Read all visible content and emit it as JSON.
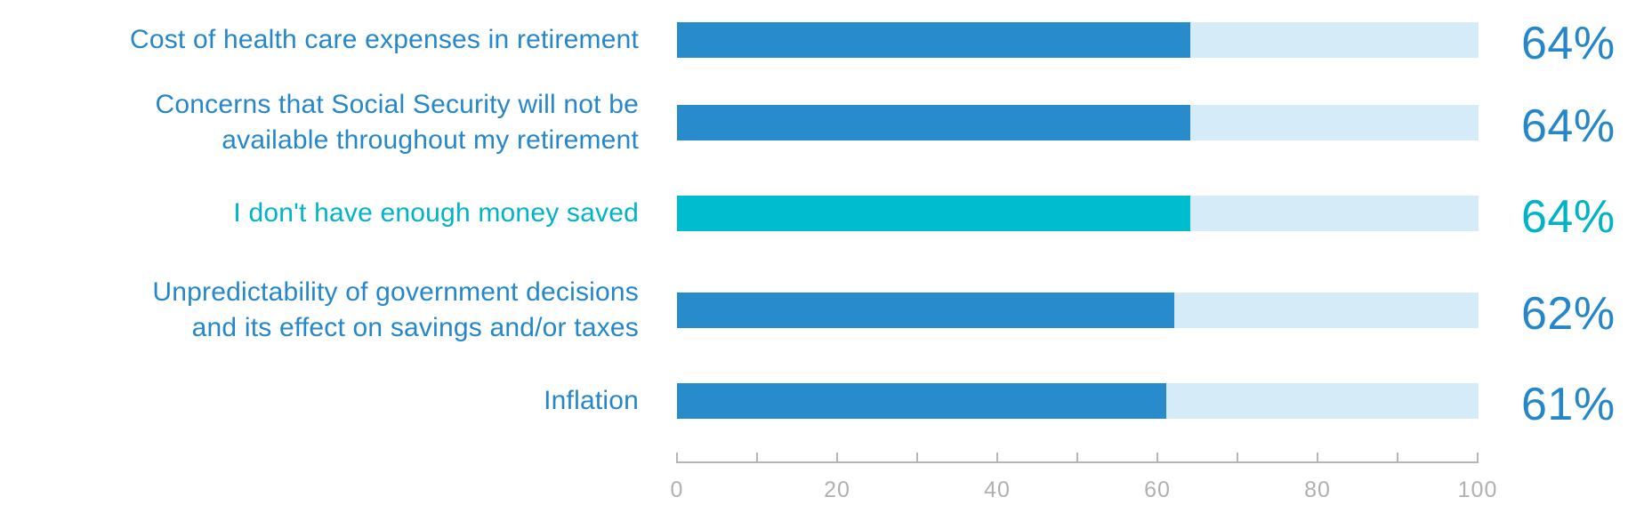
{
  "palette": {
    "label_blue": "#2587C9",
    "label_teal": "#00B3C7",
    "bar_blue": "#288BCB",
    "bar_teal": "#00BCCF",
    "track": "#D5EBF7",
    "axis_gray": "#B5B5B5",
    "tick_text_gray": "#B0B0B0"
  },
  "chart_data": {
    "type": "bar",
    "orientation": "horizontal",
    "title": "",
    "xlabel": "",
    "ylabel": "",
    "categories": [
      "Cost of health care expenses in retirement",
      "Concerns that Social Security will not be\navailable throughout my retirement",
      "I don't have enough money saved",
      "Unpredictability of government decisions\nand its effect on savings and/or taxes",
      "Inflation"
    ],
    "values": [
      64,
      64,
      64,
      62,
      61
    ],
    "value_labels": [
      "64%",
      "64%",
      "64%",
      "62%",
      "61%"
    ],
    "highlight_index": 2,
    "highlight_note": "third row rendered in teal, all others in blue",
    "track_full_value": 100,
    "xlim": [
      0,
      100
    ],
    "x_ticks": [
      0,
      10,
      20,
      30,
      40,
      50,
      60,
      70,
      80,
      90,
      100
    ],
    "x_tick_labels_shown": [
      "0",
      "20",
      "40",
      "60",
      "80",
      "100"
    ],
    "legend": "none",
    "grid": "off"
  }
}
